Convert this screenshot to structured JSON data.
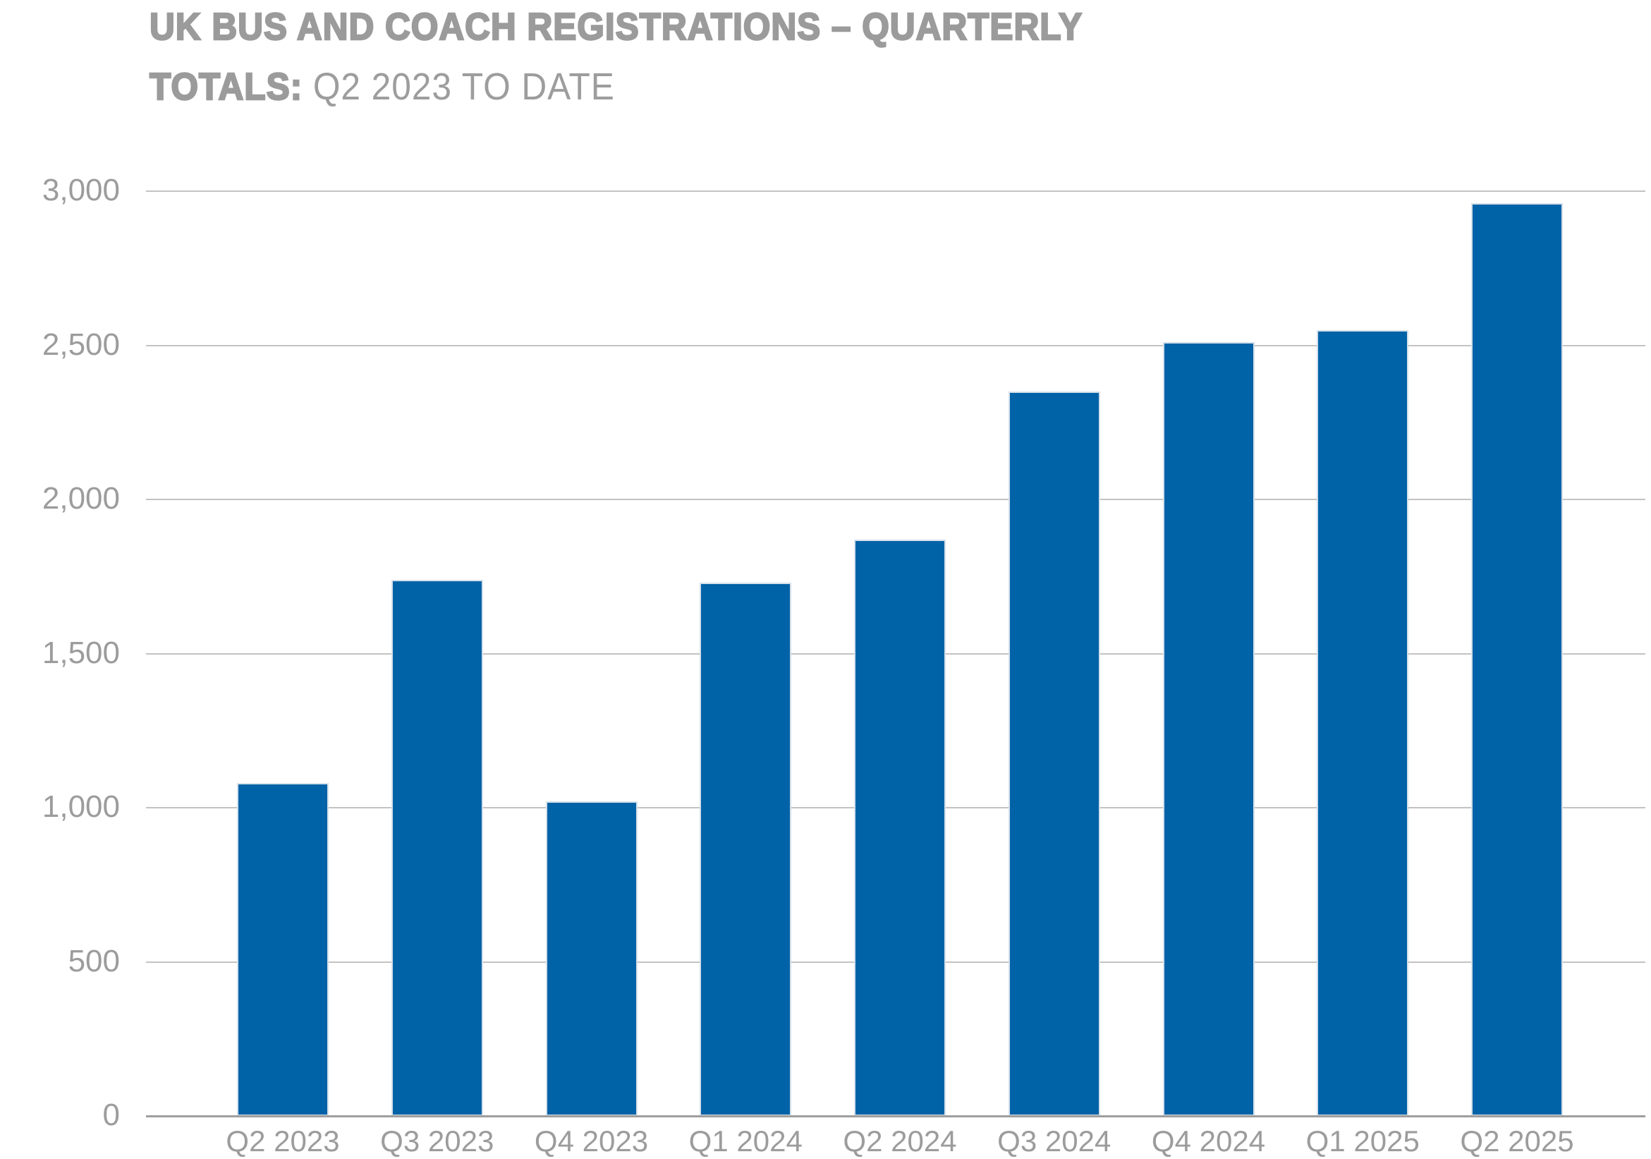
{
  "title": {
    "line1": "UK BUS AND COACH REGISTRATIONS – QUARTERLY",
    "line2_bold": "TOTALS:",
    "line2_regular": "Q2 2023 TO DATE"
  },
  "colors": {
    "bar_fill": "#0062a7",
    "bar_edge": "#d4e0ea",
    "title_text": "#9b9b9b",
    "axis_label_text": "#9c9c9c",
    "gridline": "#c3c3c3",
    "baseline": "#9e9e9e",
    "background": "#ffffff"
  },
  "chart_data": {
    "type": "bar",
    "title": "UK BUS AND COACH REGISTRATIONS – QUARTERLY TOTALS: Q2 2023 TO DATE",
    "categories": [
      "Q2 2023",
      "Q3 2023",
      "Q4 2023",
      "Q1 2024",
      "Q2 2024",
      "Q3 2024",
      "Q4 2024",
      "Q1 2025",
      "Q2 2025"
    ],
    "values": [
      1080,
      1740,
      1020,
      1730,
      1870,
      2350,
      2510,
      2550,
      2960
    ],
    "xlabel": "",
    "ylabel": "",
    "ylim": [
      0,
      3000
    ],
    "y_tick_step": 500,
    "y_tick_labels": [
      "0",
      "500",
      "1,000",
      "1,500",
      "2,000",
      "2,500",
      "3,000"
    ],
    "grid": "horizontal",
    "legend": "none",
    "bar_color": "#0062a7"
  }
}
